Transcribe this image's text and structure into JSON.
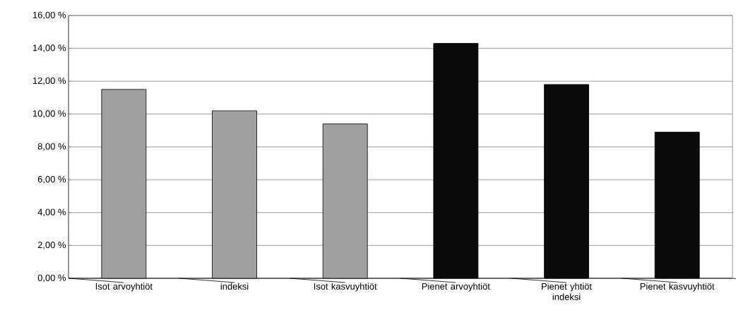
{
  "chart_data": {
    "type": "bar",
    "categories": [
      "Isot arvoyhtiöt",
      "indeksi",
      "Isot kasvuyhtiöt",
      "Pienet arvoyhtiöt",
      "Pienet yhtiöt indeksi",
      "Pienet kasvuyhtiöt"
    ],
    "values": [
      11.5,
      10.2,
      9.4,
      14.3,
      11.8,
      8.9
    ],
    "colors": [
      "#a0a0a0",
      "#a0a0a0",
      "#a0a0a0",
      "#0a0a0a",
      "#0a0a0a",
      "#0a0a0a"
    ],
    "ylim": [
      0,
      16
    ],
    "yticks": [
      {
        "value": 0,
        "label": "0,00 %"
      },
      {
        "value": 2,
        "label": "2,00 %"
      },
      {
        "value": 4,
        "label": "4,00 %"
      },
      {
        "value": 6,
        "label": "6,00 %"
      },
      {
        "value": 8,
        "label": "8,00 %"
      },
      {
        "value": 10,
        "label": "10,00 %"
      },
      {
        "value": 12,
        "label": "12,00 %"
      },
      {
        "value": 14,
        "label": "14,00 %"
      },
      {
        "value": 16,
        "label": "16,00 %"
      }
    ],
    "grid": "y"
  }
}
